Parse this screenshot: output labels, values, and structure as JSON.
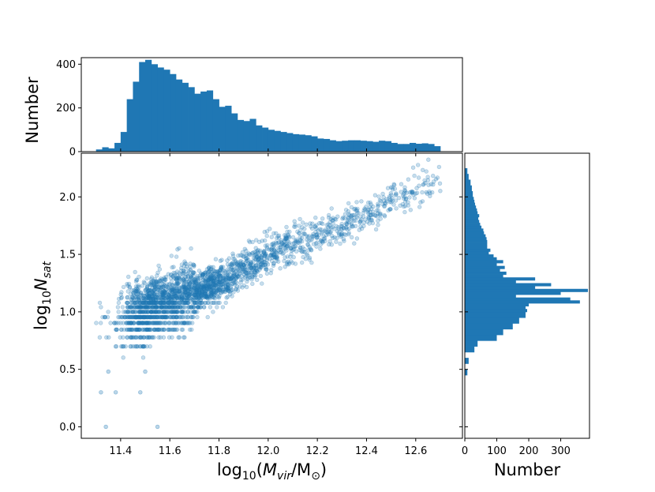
{
  "chart_data": [
    {
      "panel": "top-histogram",
      "type": "bar",
      "color": "#1f77b4",
      "ylabel": "Number",
      "ylim": [
        0,
        430
      ],
      "yticks": [
        0,
        200,
        400
      ],
      "xlim": [
        11.24,
        12.79
      ],
      "bin_edges": [
        11.3,
        11.325,
        11.35,
        11.375,
        11.4,
        11.425,
        11.45,
        11.475,
        11.5,
        11.525,
        11.55,
        11.575,
        11.6,
        11.625,
        11.65,
        11.675,
        11.7,
        11.725,
        11.75,
        11.775,
        11.8,
        11.825,
        11.85,
        11.875,
        11.9,
        11.925,
        11.95,
        11.975,
        12.0,
        12.025,
        12.05,
        12.075,
        12.1,
        12.125,
        12.15,
        12.175,
        12.2,
        12.225,
        12.25,
        12.275,
        12.3,
        12.325,
        12.35,
        12.375,
        12.4,
        12.425,
        12.45,
        12.475,
        12.5,
        12.525,
        12.55,
        12.575,
        12.6,
        12.625,
        12.65,
        12.675,
        12.7
      ],
      "counts": [
        10,
        20,
        15,
        40,
        90,
        240,
        320,
        410,
        420,
        400,
        385,
        375,
        355,
        330,
        315,
        295,
        265,
        275,
        280,
        240,
        205,
        210,
        175,
        145,
        140,
        150,
        120,
        110,
        100,
        95,
        90,
        85,
        80,
        78,
        75,
        70,
        60,
        58,
        52,
        48,
        50,
        52,
        52,
        50,
        48,
        45,
        50,
        48,
        40,
        35,
        35,
        40,
        36,
        38,
        35,
        25
      ]
    },
    {
      "panel": "scatter",
      "type": "scatter",
      "color": "#1f77b4",
      "xlabel": "log10(Mvir/M⊙)",
      "ylabel": "log10Nsat",
      "xlim": [
        11.24,
        12.79
      ],
      "ylim": [
        -0.1,
        2.38
      ],
      "xticks": [
        "11.4",
        "11.6",
        "11.8",
        "12.0",
        "12.2",
        "12.4",
        "12.6"
      ],
      "yticks": [
        "0.0",
        "0.5",
        "1.0",
        "1.5",
        "2.0"
      ],
      "trend": [
        {
          "x": 11.45,
          "y": 0.98
        },
        {
          "x": 11.8,
          "y": 1.25
        },
        {
          "x": 12.0,
          "y": 1.5
        },
        {
          "x": 12.3,
          "y": 1.75
        },
        {
          "x": 12.7,
          "y": 2.17
        }
      ],
      "scatter_spread": 0.12,
      "discrete_levels": [
        0.0,
        0.301,
        0.477,
        0.602,
        0.699,
        0.778,
        0.845,
        0.903,
        0.954,
        1.0,
        1.041,
        1.079
      ],
      "outliers": [
        {
          "x": 11.34,
          "y": 0.0
        },
        {
          "x": 11.55,
          "y": 0.0
        },
        {
          "x": 11.32,
          "y": 0.3
        },
        {
          "x": 11.38,
          "y": 0.3
        },
        {
          "x": 11.48,
          "y": 0.3
        },
        {
          "x": 11.35,
          "y": 0.48
        },
        {
          "x": 11.5,
          "y": 0.48
        }
      ]
    },
    {
      "panel": "right-histogram",
      "type": "bar",
      "orientation": "horizontal",
      "color": "#1f77b4",
      "xlabel": "Number",
      "xlim": [
        0,
        390
      ],
      "xticks": [
        0,
        100,
        200,
        300
      ],
      "bin_edges": [
        0.45,
        0.5,
        0.55,
        0.6,
        0.65,
        0.7,
        0.75,
        0.8,
        0.85,
        0.9,
        0.95,
        1.0,
        1.025,
        1.05,
        1.075,
        1.1,
        1.125,
        1.15,
        1.175,
        1.2,
        1.225,
        1.25,
        1.275,
        1.3,
        1.325,
        1.35,
        1.375,
        1.4,
        1.425,
        1.45,
        1.475,
        1.5,
        1.525,
        1.55,
        1.575,
        1.6,
        1.625,
        1.65,
        1.675,
        1.7,
        1.725,
        1.75,
        1.775,
        1.8,
        1.825,
        1.85,
        1.875,
        1.9,
        1.925,
        1.95,
        1.975,
        2.0,
        2.05,
        2.1,
        2.15,
        2.2,
        2.25
      ],
      "counts": [
        8,
        0,
        12,
        0,
        30,
        40,
        100,
        120,
        150,
        170,
        190,
        195,
        190,
        200,
        360,
        330,
        160,
        300,
        385,
        220,
        270,
        160,
        220,
        120,
        130,
        110,
        125,
        100,
        120,
        100,
        90,
        75,
        80,
        70,
        70,
        70,
        68,
        65,
        60,
        58,
        52,
        48,
        45,
        42,
        45,
        40,
        38,
        35,
        32,
        30,
        28,
        25,
        22,
        18,
        12,
        8
      ]
    }
  ]
}
